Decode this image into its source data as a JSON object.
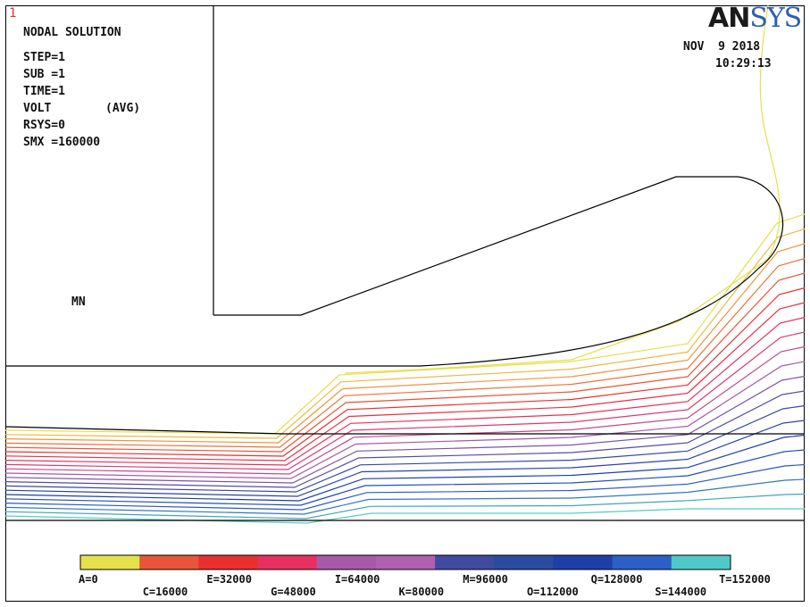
{
  "window_number": "1",
  "brand": {
    "main": "AN",
    "accent": "SYS"
  },
  "header": {
    "plot_title": "NODAL SOLUTION",
    "step": "STEP=1",
    "sub": "SUB =1",
    "time": "TIME=1",
    "quantity": "VOLT",
    "averaging": "(AVG)",
    "rsys": "RSYS=0",
    "smx": "SMX =160000"
  },
  "date": "NOV  9 2018",
  "time_of_day": "10:29:13",
  "min_marker": "MN",
  "legend": {
    "labels": [
      "A=0",
      "C=16000",
      "E=32000",
      "G=48000",
      "I=64000",
      "K=80000",
      "M=96000",
      "O=112000",
      "Q=128000",
      "S=144000",
      "T=152000"
    ],
    "colors": [
      "#e6e04a",
      "#e8553a",
      "#e8302f",
      "#e83060",
      "#a85aa8",
      "#b060b0",
      "#404aa0",
      "#2a4ba0",
      "#1f3fa8",
      "#2b60c8",
      "#50c8c8"
    ]
  },
  "contours": {
    "count": 21,
    "top_color": "#e6e04a",
    "bottom_color": "#4fcfc0"
  }
}
